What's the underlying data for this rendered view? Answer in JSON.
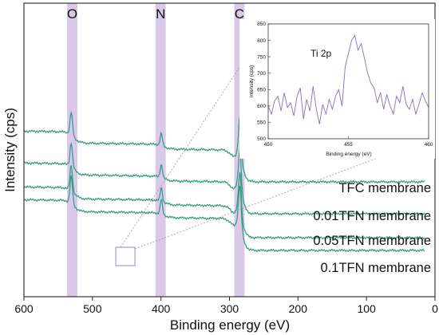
{
  "chart_data": [
    {
      "type": "line",
      "xlabel": "Binding energy (eV)",
      "ylabel": "Intensity (cps)",
      "xlim": [
        600,
        0
      ],
      "x_ticks": [
        "600",
        "500",
        "400",
        "300",
        "200",
        "100",
        "0"
      ],
      "x_reversed": true,
      "y_tick_labels": false,
      "highlight_bands": [
        {
          "label": "O",
          "from": 537,
          "to": 522
        },
        {
          "label": "N",
          "from": 408,
          "to": 393
        },
        {
          "label": "C",
          "from": 293,
          "to": 278
        }
      ],
      "line_color": "#2e9b80",
      "band_color": "#d9c8e6",
      "zoom_box": {
        "from_eV": 466,
        "to_eV": 438
      },
      "series": [
        {
          "name": "TFC membrane",
          "offset": 3
        },
        {
          "name": "0.01TFN membrane",
          "offset": 2
        },
        {
          "name": "0.05TFN membrane",
          "offset": 1
        },
        {
          "name": "0.1TFN membrane",
          "offset": 0
        }
      ]
    },
    {
      "type": "line",
      "annotation": "Ti 2p",
      "xlabel": "Binding energy (eV)",
      "ylabel": "Intensity (cps)",
      "xlim": [
        450,
        460
      ],
      "ylim": [
        500,
        850
      ],
      "x_ticks": [
        "450",
        "455",
        "460"
      ],
      "y_ticks": [
        "500",
        "550",
        "600",
        "650",
        "700",
        "750",
        "800",
        "850"
      ],
      "line_color": "#8a6cc6",
      "x": [
        450.0,
        450.2,
        450.4,
        450.6,
        450.8,
        451.0,
        451.2,
        451.4,
        451.6,
        451.8,
        452.0,
        452.2,
        452.4,
        452.6,
        452.8,
        453.0,
        453.2,
        453.4,
        453.6,
        453.8,
        454.0,
        454.2,
        454.4,
        454.6,
        454.8,
        455.0,
        455.2,
        455.4,
        455.6,
        455.8,
        456.0,
        456.2,
        456.4,
        456.6,
        456.8,
        457.0,
        457.2,
        457.4,
        457.6,
        457.8,
        458.0,
        458.2,
        458.4,
        458.6,
        458.8,
        459.0,
        459.2,
        459.4,
        459.6,
        459.8,
        460.0
      ],
      "y": [
        600,
        575,
        615,
        630,
        585,
        640,
        595,
        610,
        570,
        630,
        655,
        560,
        620,
        585,
        660,
        590,
        545,
        605,
        575,
        620,
        590,
        630,
        650,
        600,
        720,
        760,
        800,
        815,
        770,
        790,
        745,
        700,
        670,
        655,
        610,
        640,
        590,
        635,
        600,
        575,
        630,
        610,
        660,
        605,
        590,
        620,
        575,
        605,
        640,
        615,
        595
      ]
    }
  ]
}
